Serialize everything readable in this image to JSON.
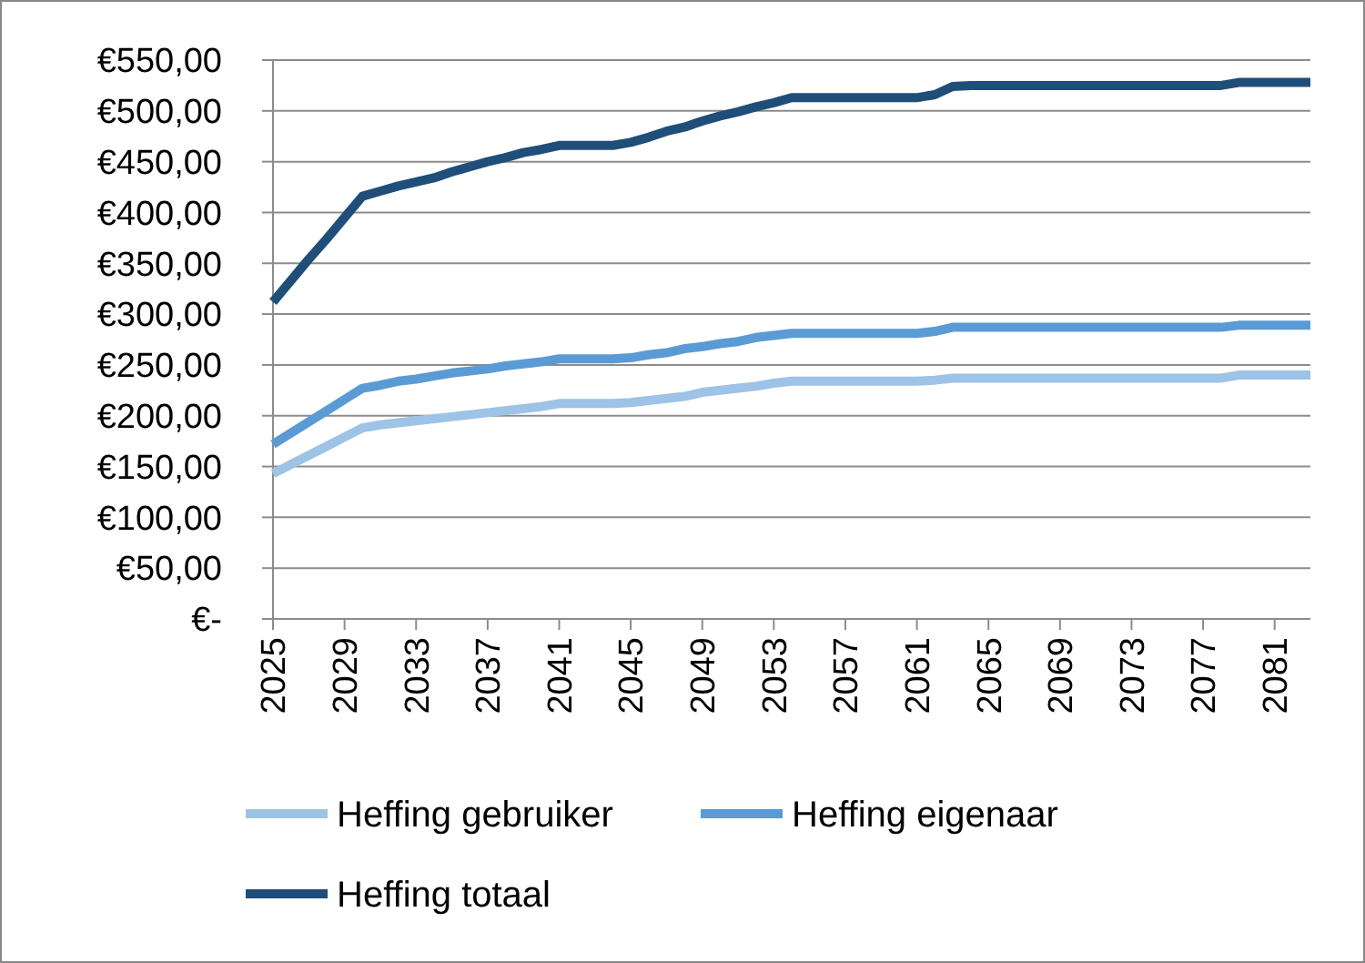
{
  "chart_data": {
    "type": "line",
    "x": [
      2025,
      2026,
      2027,
      2028,
      2029,
      2030,
      2031,
      2032,
      2033,
      2034,
      2035,
      2036,
      2037,
      2038,
      2039,
      2040,
      2041,
      2042,
      2043,
      2044,
      2045,
      2046,
      2047,
      2048,
      2049,
      2050,
      2051,
      2052,
      2053,
      2054,
      2055,
      2056,
      2057,
      2058,
      2059,
      2060,
      2061,
      2062,
      2063,
      2064,
      2065,
      2066,
      2067,
      2068,
      2069,
      2070,
      2071,
      2072,
      2073,
      2074,
      2075,
      2076,
      2077,
      2078,
      2079,
      2080,
      2081,
      2082,
      2083
    ],
    "series": [
      {
        "name": "Heffing gebruiker",
        "color": "#9dc3e6",
        "values": [
          143,
          152,
          161,
          170,
          179,
          188,
          191,
          193,
          195,
          197,
          199,
          201,
          203,
          205,
          207,
          209,
          212,
          212,
          212,
          212,
          213,
          215,
          217,
          219,
          223,
          225,
          227,
          229,
          232,
          234,
          234,
          234,
          234,
          234,
          234,
          234,
          234,
          235,
          237,
          237,
          237,
          237,
          237,
          237,
          237,
          237,
          237,
          237,
          237,
          237,
          237,
          237,
          237,
          237,
          240,
          240,
          240,
          240,
          240
        ]
      },
      {
        "name": "Heffing eigenaar",
        "color": "#5b9bd5",
        "values": [
          172,
          183,
          194,
          205,
          216,
          227,
          230,
          234,
          236,
          239,
          242,
          244,
          246,
          249,
          251,
          253,
          256,
          256,
          256,
          256,
          257,
          260,
          262,
          266,
          268,
          271,
          273,
          277,
          279,
          281,
          281,
          281,
          281,
          281,
          281,
          281,
          281,
          283,
          287,
          287,
          287,
          287,
          287,
          287,
          287,
          287,
          287,
          287,
          287,
          287,
          287,
          287,
          287,
          287,
          289,
          289,
          289,
          289,
          289
        ]
      },
      {
        "name": "Heffing totaal",
        "color": "#1f4e79",
        "values": [
          312,
          333,
          354,
          374,
          395,
          416,
          421,
          426,
          430,
          434,
          440,
          445,
          450,
          454,
          459,
          462,
          466,
          466,
          466,
          466,
          469,
          474,
          480,
          484,
          490,
          495,
          499,
          504,
          508,
          513,
          513,
          513,
          513,
          513,
          513,
          513,
          513,
          516,
          524,
          525,
          525,
          525,
          525,
          525,
          525,
          525,
          525,
          525,
          525,
          525,
          525,
          525,
          525,
          525,
          528,
          528,
          528,
          528,
          528
        ]
      }
    ],
    "xlim": [
      2025,
      2083
    ],
    "xticks": [
      2025,
      2029,
      2033,
      2037,
      2041,
      2045,
      2049,
      2053,
      2057,
      2061,
      2065,
      2069,
      2073,
      2077,
      2081
    ],
    "ylim": [
      0,
      550
    ],
    "yticks": [
      {
        "value": 0,
        "label": "€-"
      },
      {
        "value": 50,
        "label": "€50,00"
      },
      {
        "value": 100,
        "label": "€100,00"
      },
      {
        "value": 150,
        "label": "€150,00"
      },
      {
        "value": 200,
        "label": "€200,00"
      },
      {
        "value": 250,
        "label": "€250,00"
      },
      {
        "value": 300,
        "label": "€300,00"
      },
      {
        "value": 350,
        "label": "€350,00"
      },
      {
        "value": 400,
        "label": "€400,00"
      },
      {
        "value": 450,
        "label": "€450,00"
      },
      {
        "value": 500,
        "label": "€500,00"
      },
      {
        "value": 550,
        "label": "€550,00"
      }
    ],
    "grid": "y",
    "legend": "bottom"
  }
}
